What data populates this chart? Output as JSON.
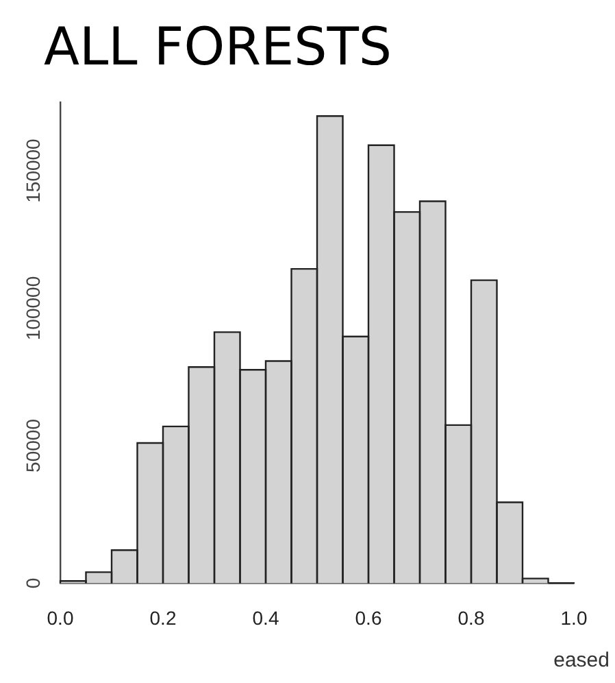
{
  "chart_data": {
    "type": "histogram",
    "title": "ALL FORESTS",
    "annotations": [
      "eased"
    ],
    "bins": [
      0,
      0.05,
      0.1,
      0.15,
      0.2,
      0.25,
      0.3,
      0.35,
      0.4,
      0.45,
      0.5,
      0.55,
      0.6,
      0.65,
      0.7,
      0.75,
      0.8,
      0.85,
      0.9,
      0.95,
      1
    ],
    "values": [
      800,
      4000,
      12000,
      51000,
      57000,
      78600,
      91300,
      77600,
      80800,
      114300,
      169900,
      89700,
      159300,
      135000,
      138900,
      57500,
      110200,
      29400,
      1700,
      0
    ],
    "color": "#d3d3d3",
    "xlim": [
      0,
      1
    ],
    "xticks": [
      {
        "value": 0,
        "label": "0.0"
      },
      0.2,
      0.4,
      0.6,
      0.8,
      {
        "value": 1,
        "label": "1.0"
      }
    ],
    "ylim": [
      0,
      175000
    ],
    "yticks": [
      0,
      50000,
      100000,
      150000
    ],
    "grid": false,
    "legend": false
  }
}
